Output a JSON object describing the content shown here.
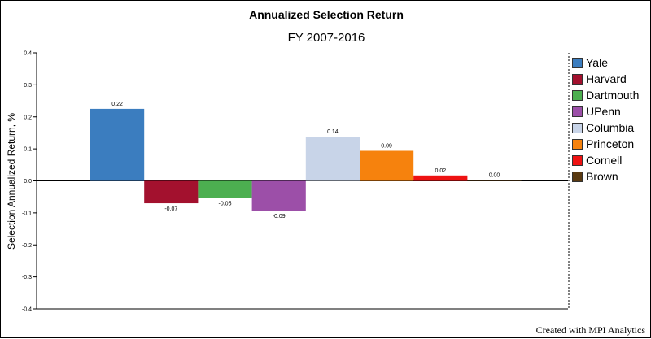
{
  "chart_data": {
    "type": "bar",
    "title": "Annualized Selection Return",
    "subtitle": "FY 2007-2016",
    "ylabel": "Selection Annualized Return, %",
    "xlabel": "",
    "ylim": [
      -0.4,
      0.4
    ],
    "yticks": [
      0.4,
      0.3,
      0.2,
      0.1,
      0.0,
      -0.1,
      -0.2,
      -0.3,
      -0.4
    ],
    "ytick_labels": [
      "0.4",
      "0.3",
      "0.2",
      "0.1",
      "0.0",
      "-0.1",
      "-0.2",
      "-0.3",
      "-0.4"
    ],
    "categories": [
      "Yale",
      "Harvard",
      "Dartmouth",
      "UPenn",
      "Columbia",
      "Princeton",
      "Cornell",
      "Brown"
    ],
    "values": [
      0.225,
      -0.07,
      -0.053,
      -0.093,
      0.138,
      0.094,
      0.017,
      0.003
    ],
    "data_labels": [
      "0.22",
      "-0.07",
      "-0.05",
      "-0.09",
      "0.14",
      "0.09",
      "0.02",
      "0.00"
    ],
    "colors": [
      "#3b7dbf",
      "#a3112e",
      "#4caf50",
      "#9c4fa8",
      "#c8d4e8",
      "#f6820d",
      "#ee1212",
      "#5a3a12"
    ],
    "grid": false,
    "legend_position": "right"
  },
  "credit": "Created with MPI Analytics"
}
